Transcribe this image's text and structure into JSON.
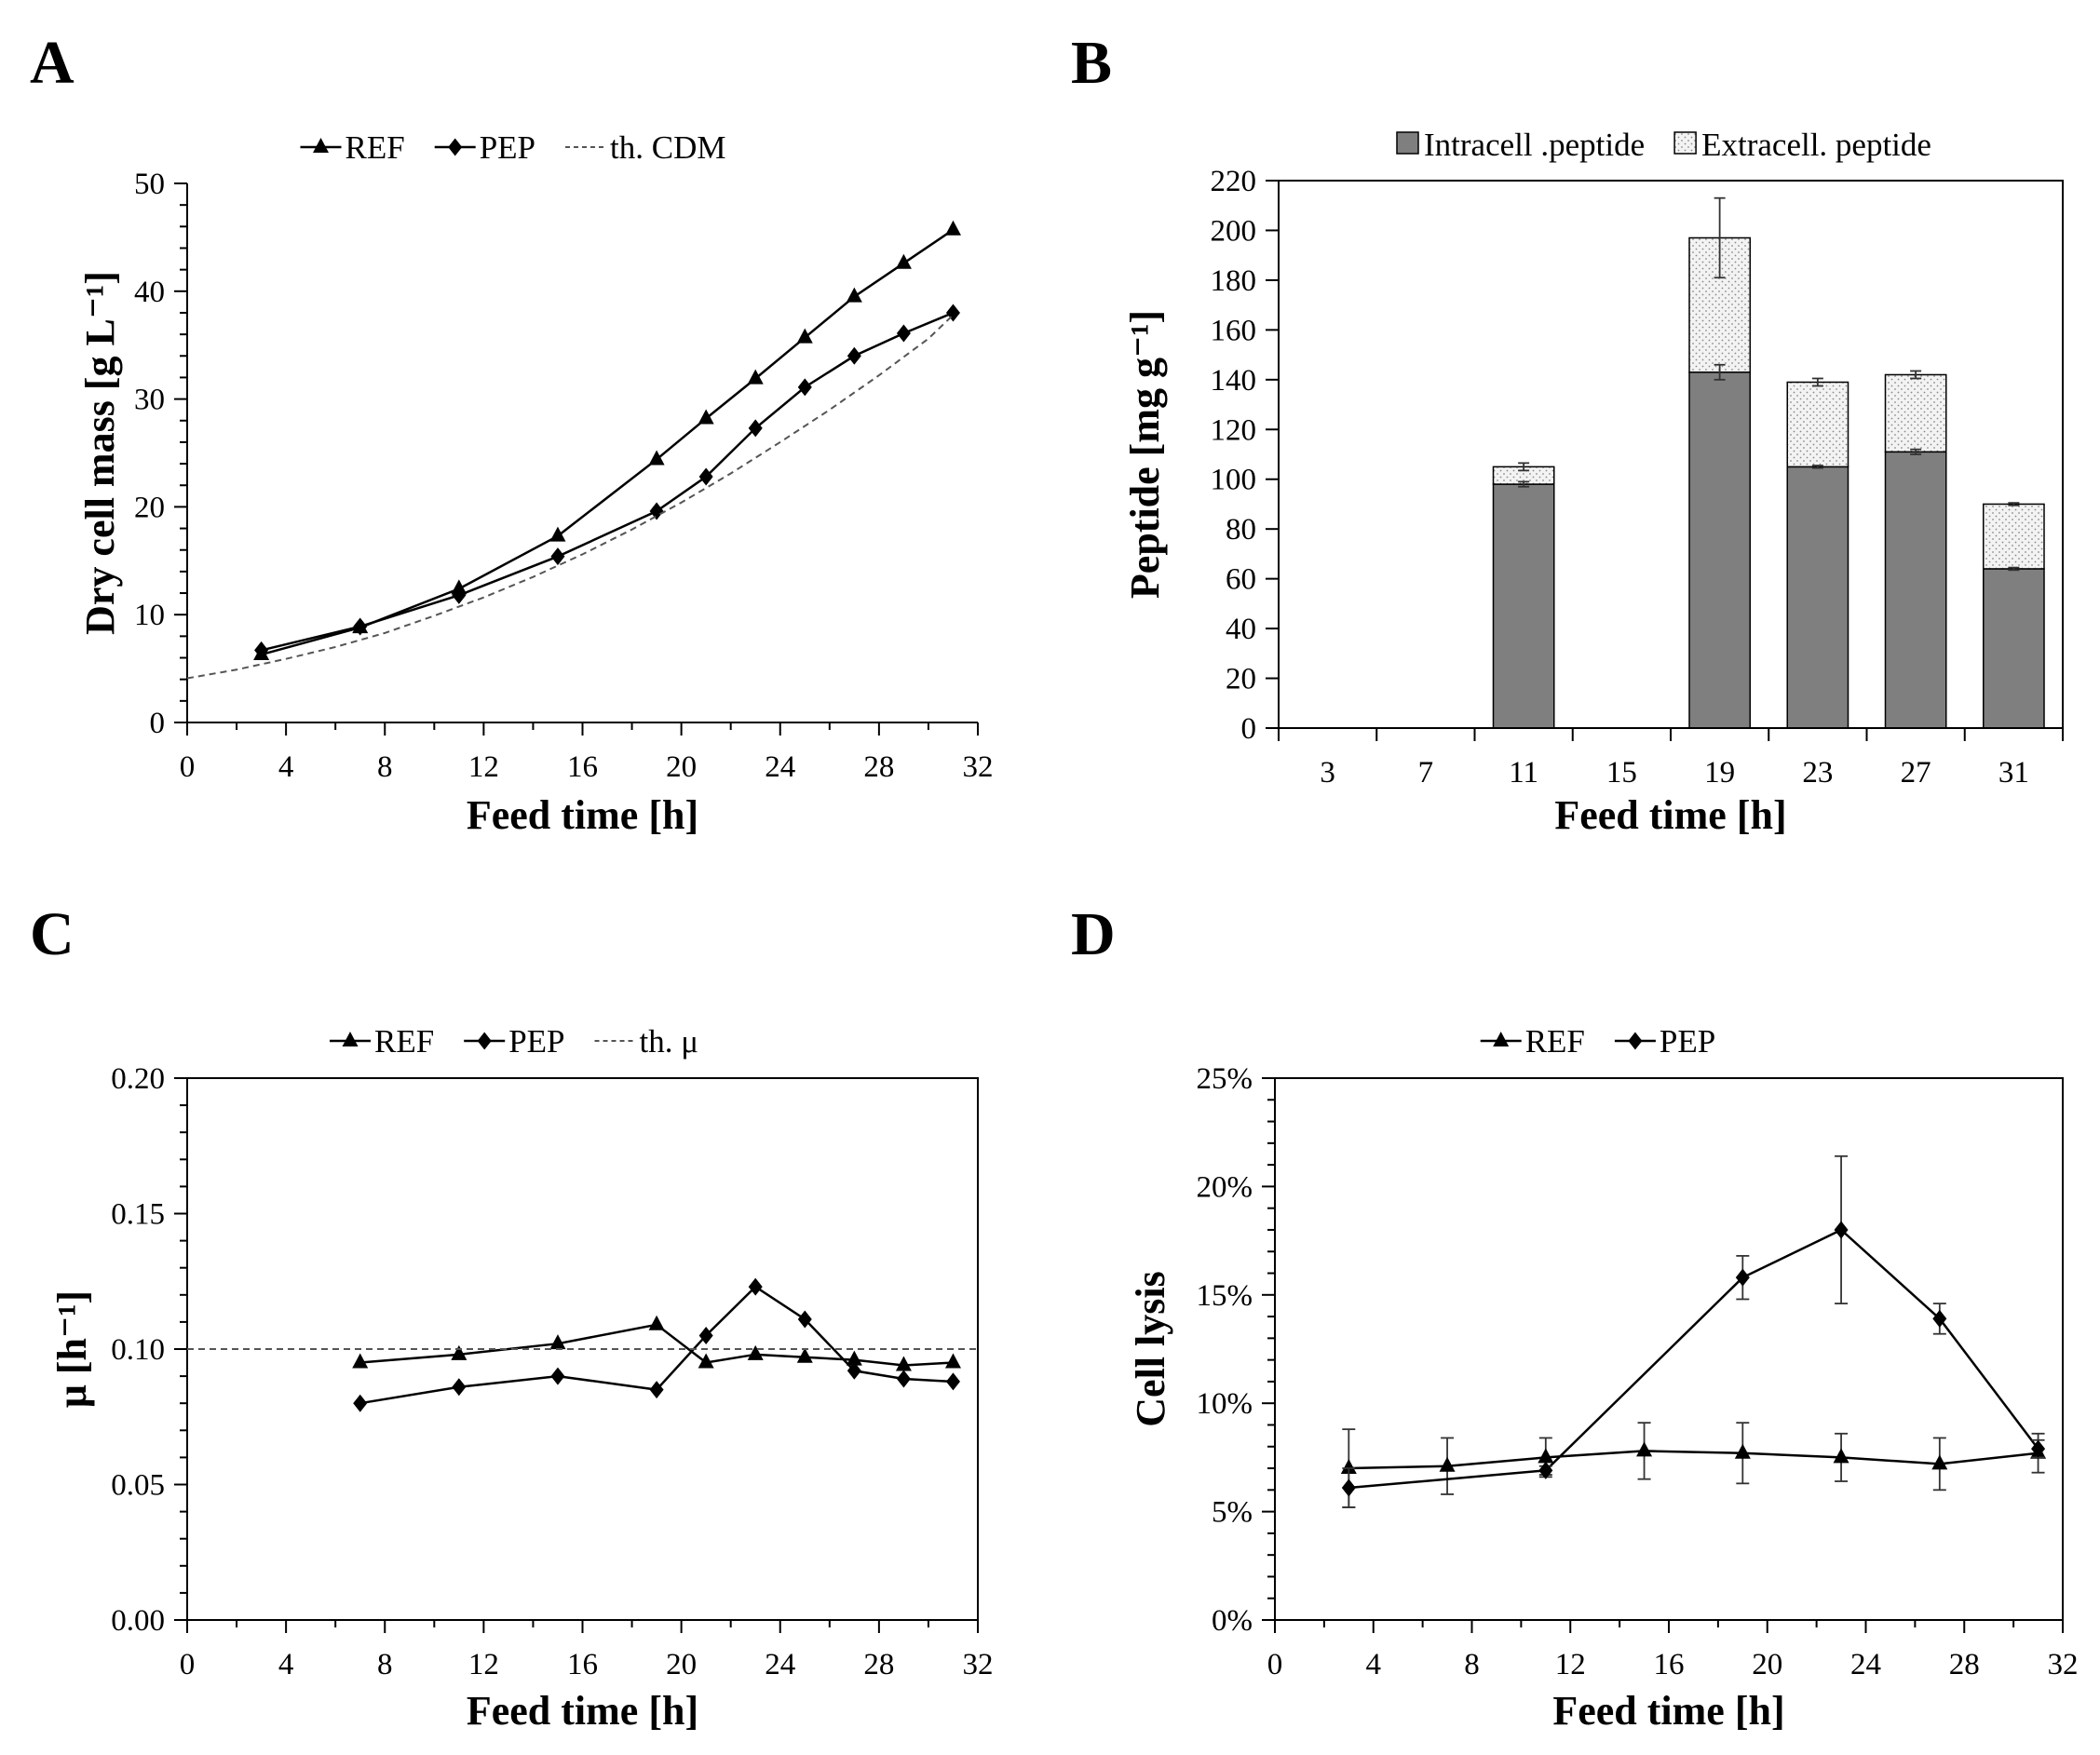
{
  "chart_data": [
    {
      "panel_label": "A",
      "type": "line",
      "xlabel": "Feed time [h]",
      "ylabel": "Dry cell mass [g L⁻¹]",
      "xlim": [
        0,
        32
      ],
      "ylim": [
        0,
        50
      ],
      "xticks": [
        0,
        4,
        8,
        12,
        16,
        20,
        24,
        28,
        32
      ],
      "xtick_labels": [
        "0",
        "4",
        "8",
        "12",
        "16",
        "20",
        "24",
        "28",
        "32"
      ],
      "yticks": [
        0,
        10,
        20,
        30,
        40,
        50
      ],
      "ytick_labels": [
        "0",
        "10",
        "20",
        "30",
        "40",
        "50"
      ],
      "x_minor_step": 2,
      "y_minor_step": 2,
      "legend_position": "top",
      "series": [
        {
          "name": "REF",
          "marker": "triangle",
          "color": "#000000",
          "dashed": false,
          "x": [
            3,
            7,
            11,
            15,
            19,
            21,
            23,
            25,
            27,
            29,
            31
          ],
          "y": [
            6.3,
            8.8,
            12.4,
            17.3,
            24.4,
            28.2,
            31.9,
            35.7,
            39.5,
            42.6,
            45.7
          ]
        },
        {
          "name": "PEP",
          "marker": "diamond",
          "color": "#000000",
          "dashed": false,
          "x": [
            3,
            7,
            11,
            15,
            19,
            21,
            23,
            25,
            27,
            29,
            31
          ],
          "y": [
            6.7,
            8.9,
            11.8,
            15.4,
            19.6,
            22.8,
            27.3,
            31.1,
            34.0,
            36.1,
            38.0
          ]
        },
        {
          "name": "th. CDM",
          "marker": "none",
          "color": "#555555",
          "dashed": true,
          "x": [
            0,
            2,
            4,
            6,
            8,
            10,
            12,
            14,
            16,
            18,
            20,
            22,
            24,
            26,
            28,
            30,
            31
          ],
          "y": [
            4.1,
            4.9,
            5.9,
            7.0,
            8.3,
            9.9,
            11.6,
            13.5,
            15.6,
            17.9,
            20.4,
            23.1,
            26.0,
            29.0,
            32.2,
            35.6,
            37.8
          ]
        }
      ]
    },
    {
      "panel_label": "B",
      "type": "bar",
      "stacked": true,
      "xlabel": "Feed time [h]",
      "ylabel": "Peptide [mg g⁻¹]",
      "categories": [
        "3",
        "7",
        "11",
        "15",
        "19",
        "23",
        "27",
        "31"
      ],
      "ylim": [
        0,
        220
      ],
      "yticks": [
        0,
        20,
        40,
        60,
        80,
        100,
        120,
        140,
        160,
        180,
        200,
        220
      ],
      "ytick_labels": [
        "0",
        "20",
        "40",
        "60",
        "80",
        "100",
        "120",
        "140",
        "160",
        "180",
        "200",
        "220"
      ],
      "legend_position": "top",
      "series": [
        {
          "name": "Intracell .peptide",
          "color": "#7f7f7f",
          "dotted_fill": false,
          "values": [
            null,
            null,
            98,
            null,
            143,
            105,
            111,
            64
          ],
          "err": [
            null,
            null,
            1,
            null,
            3,
            0.5,
            1,
            0.5
          ]
        },
        {
          "name": "Extracell. peptide",
          "color": "#f0f0f0",
          "dotted_fill": true,
          "values": [
            null,
            null,
            7,
            null,
            54,
            34,
            31,
            26
          ],
          "err": [
            null,
            null,
            1.5,
            null,
            16,
            1.5,
            1.5,
            0.5
          ]
        }
      ]
    },
    {
      "panel_label": "C",
      "type": "line",
      "xlabel": "Feed time [h]",
      "ylabel": "μ [h⁻¹]",
      "xlim": [
        0,
        32
      ],
      "ylim": [
        0,
        0.2
      ],
      "xticks": [
        0,
        4,
        8,
        12,
        16,
        20,
        24,
        28,
        32
      ],
      "xtick_labels": [
        "0",
        "4",
        "8",
        "12",
        "16",
        "20",
        "24",
        "28",
        "32"
      ],
      "yticks": [
        0,
        0.05,
        0.1,
        0.15,
        0.2
      ],
      "ytick_labels": [
        "0.00",
        "0.05",
        "0.10",
        "0.15",
        "0.20"
      ],
      "x_minor_step": 2,
      "y_minor_step": 0.01,
      "legend_position": "top",
      "series": [
        {
          "name": "REF",
          "marker": "triangle",
          "color": "#000000",
          "dashed": false,
          "x": [
            7,
            11,
            15,
            19,
            21,
            23,
            25,
            27,
            29,
            31
          ],
          "y": [
            0.095,
            0.098,
            0.102,
            0.109,
            0.095,
            0.098,
            0.097,
            0.096,
            0.094,
            0.095
          ]
        },
        {
          "name": "PEP",
          "marker": "diamond",
          "color": "#000000",
          "dashed": false,
          "x": [
            7,
            11,
            15,
            19,
            21,
            23,
            25,
            27,
            29,
            31
          ],
          "y": [
            0.08,
            0.086,
            0.09,
            0.085,
            0.105,
            0.123,
            0.111,
            0.092,
            0.089,
            0.088
          ]
        },
        {
          "name": "th. μ",
          "marker": "none",
          "color": "#555555",
          "dashed": true,
          "x": [
            0,
            32
          ],
          "y": [
            0.1,
            0.1
          ]
        }
      ]
    },
    {
      "panel_label": "D",
      "type": "line",
      "xlabel": "Feed time [h]",
      "ylabel": "Cell lysis",
      "xlim": [
        0,
        32
      ],
      "ylim": [
        0,
        25
      ],
      "xticks": [
        0,
        4,
        8,
        12,
        16,
        20,
        24,
        28,
        32
      ],
      "xtick_labels": [
        "0",
        "4",
        "8",
        "12",
        "16",
        "20",
        "24",
        "28",
        "32"
      ],
      "yticks": [
        0,
        5,
        10,
        15,
        20,
        25
      ],
      "ytick_labels": [
        "0%",
        "5%",
        "10%",
        "15%",
        "20%",
        "25%"
      ],
      "x_minor_step": 2,
      "y_minor_step": 1,
      "legend_position": "top",
      "series": [
        {
          "name": "REF",
          "marker": "triangle",
          "color": "#000000",
          "dashed": false,
          "x": [
            3,
            7,
            11,
            15,
            19,
            23,
            27,
            31
          ],
          "y": [
            7.0,
            7.1,
            7.5,
            7.8,
            7.7,
            7.5,
            7.2,
            7.7
          ],
          "err": [
            1.8,
            1.3,
            0.9,
            1.3,
            1.4,
            1.1,
            1.2,
            0.9
          ]
        },
        {
          "name": "PEP",
          "marker": "diamond",
          "color": "#000000",
          "dashed": false,
          "x": [
            3,
            11,
            19,
            23,
            27,
            31
          ],
          "y": [
            6.1,
            6.9,
            15.8,
            18.0,
            13.9,
            7.9
          ],
          "err": [
            0.9,
            0.2,
            1.0,
            3.4,
            0.7,
            0.4
          ]
        }
      ]
    }
  ]
}
